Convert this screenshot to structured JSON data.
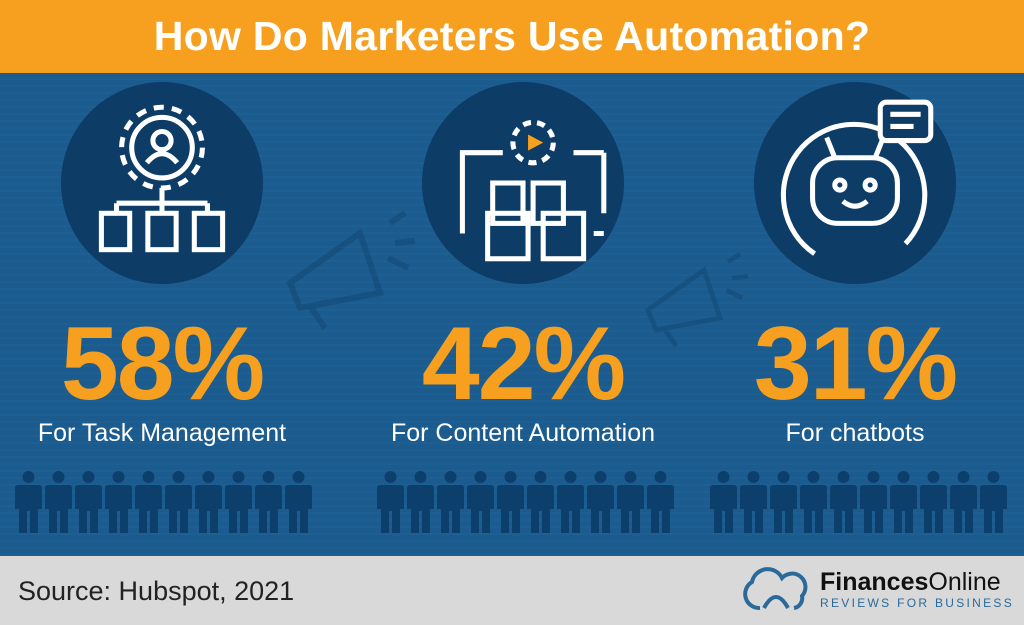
{
  "title": "How Do Marketers Use Automation?",
  "stats": [
    {
      "value": "58%",
      "label": "For Task Management",
      "icon": "gear-person-documents-icon"
    },
    {
      "value": "42%",
      "label": "For Content Automation",
      "icon": "gear-workflow-icon"
    },
    {
      "value": "31%",
      "label": "For chatbots",
      "icon": "chatbot-icon"
    }
  ],
  "people_per_row": 10,
  "footer": {
    "source": "Source: Hubspot, 2021",
    "brand_bold": "Finances",
    "brand_light": "Online",
    "tagline": "REVIEWS FOR BUSINESS"
  },
  "colors": {
    "orange": "#f7a01f",
    "blue": "#1b5b8e",
    "navy": "#0d3c66",
    "footer": "#d9d9d9"
  }
}
